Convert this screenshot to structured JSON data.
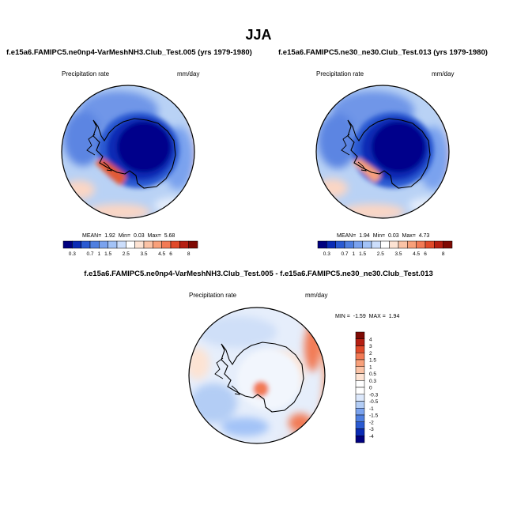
{
  "title": "JJA",
  "colors": {
    "outline": "#000000",
    "ocean_base": "#b9d2f5",
    "antarctica_dark": "#00008b"
  },
  "panels": [
    {
      "id": "left",
      "title": "f.e15a6.FAMIPC5.ne0np4-VarMeshNH3.Club_Test.005 (yrs 1979-1980)",
      "variable": "Precipitation rate",
      "units": "mm/day",
      "stats": {
        "mean_label": "MEAN=",
        "mean": "1.92",
        "min_label": "Min=",
        "min": "0.03",
        "max_label": "Max=",
        "max": "5.68"
      },
      "colorbar": {
        "colors": [
          "#00007f",
          "#0a2bb5",
          "#2a5ad2",
          "#4f7fe0",
          "#7aa2ee",
          "#a3c3f7",
          "#ccdefb",
          "#ffffff",
          "#fde3d3",
          "#fbc3a6",
          "#f8a07a",
          "#f27a55",
          "#e04a2a",
          "#b51f12",
          "#7f0a04"
        ],
        "labels": [
          "0.3",
          "0.7",
          "1",
          "1.5",
          "2.5",
          "3.5",
          "4.5",
          "6",
          "8"
        ]
      }
    },
    {
      "id": "right",
      "title": "f.e15a6.FAMIPC5.ne30_ne30.Club_Test.013 (yrs 1979-1980)",
      "variable": "Precipitation rate",
      "units": "mm/day",
      "stats": {
        "mean_label": "MEAN=",
        "mean": "1.94",
        "min_label": "Min=",
        "min": "0.03",
        "max_label": "Max=",
        "max": "4.73"
      },
      "colorbar": {
        "colors": [
          "#00007f",
          "#0a2bb5",
          "#2a5ad2",
          "#4f7fe0",
          "#7aa2ee",
          "#a3c3f7",
          "#ccdefb",
          "#ffffff",
          "#fde3d3",
          "#fbc3a6",
          "#f8a07a",
          "#f27a55",
          "#e04a2a",
          "#b51f12",
          "#7f0a04"
        ],
        "labels": [
          "0.3",
          "0.7",
          "1",
          "1.5",
          "2.5",
          "3.5",
          "4.5",
          "6",
          "8"
        ]
      }
    },
    {
      "id": "diff",
      "title": "f.e15a6.FAMIPC5.ne0np4-VarMeshNH3.Club_Test.005 - f.e15a6.FAMIPC5.ne30_ne30.Club_Test.013",
      "variable": "Precipitation rate",
      "units": "mm/day",
      "stats": {
        "min_label": "MIN =",
        "min": "-1.59",
        "max_label": "MAX =",
        "max": "1.94"
      },
      "colorbar": {
        "colors": [
          "#7f0a04",
          "#b51f12",
          "#e04a2a",
          "#f27a55",
          "#f8a07a",
          "#fbc3a6",
          "#fde3d3",
          "#ffffff",
          "#ffffff",
          "#dce8fb",
          "#b3cdf5",
          "#7aa2ee",
          "#4f7fe0",
          "#2a5ad2",
          "#0a2bb5",
          "#00007f"
        ],
        "labels": [
          "4",
          "3",
          "2",
          "1.5",
          "1",
          "0.5",
          "0.3",
          "0",
          "-0.3",
          "-0.5",
          "-1",
          "-1.5",
          "-2",
          "-3",
          "-4"
        ]
      }
    }
  ]
}
